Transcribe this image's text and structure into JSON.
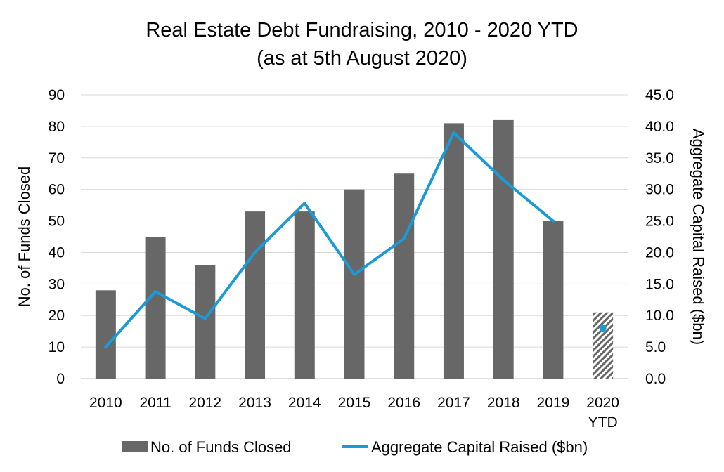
{
  "chart_data": {
    "type": "bar",
    "title": "Real Estate Debt Fundraising, 2010 - 2020 YTD",
    "subtitle": "(as at 5th August 2020)",
    "categories": [
      "2010",
      "2011",
      "2012",
      "2013",
      "2014",
      "2015",
      "2016",
      "2017",
      "2018",
      "2019",
      "2020 YTD"
    ],
    "series": [
      {
        "name": "No. of Funds Closed",
        "type": "bar",
        "axis": "left",
        "color": "#676767",
        "values": [
          28,
          45,
          36,
          53,
          53,
          60,
          65,
          81,
          82,
          50,
          21
        ],
        "hatched_last": true
      },
      {
        "name": "Aggregate Capital Raised ($bn)",
        "type": "line",
        "axis": "right",
        "color": "#1a9ad6",
        "values": [
          5.0,
          13.8,
          9.5,
          20.0,
          27.8,
          16.5,
          22.2,
          39.0,
          31.5,
          25.0,
          8.0
        ],
        "last_point_marker_only": true
      }
    ],
    "ylabel": "No. of Funds Closed",
    "y2label": "Aggregate Capital Raised ($bn)",
    "ylim": [
      0,
      90
    ],
    "y2lim": [
      0,
      45
    ],
    "yticks": [
      "0",
      "10",
      "20",
      "30",
      "40",
      "50",
      "60",
      "70",
      "80",
      "90"
    ],
    "y2ticks": [
      "0.0",
      "5.0",
      "10.0",
      "15.0",
      "20.0",
      "25.0",
      "30.0",
      "35.0",
      "40.0",
      "45.0"
    ],
    "grid": true,
    "legend": "bottom"
  }
}
